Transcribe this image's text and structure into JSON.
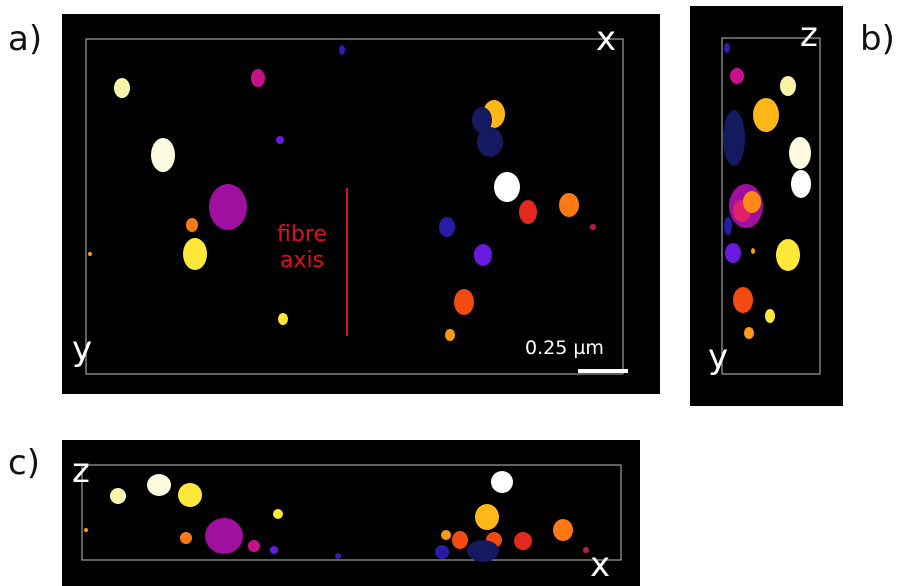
{
  "figure": {
    "panels": [
      {
        "id": "a",
        "letter": "a)",
        "axis_top_right": "x",
        "axis_bottom_left": "y"
      },
      {
        "id": "b",
        "letter": "b)",
        "axis_top_right": "z",
        "axis_bottom_left": "y"
      },
      {
        "id": "c",
        "letter": "c)",
        "axis_top_left": "z",
        "axis_bottom_right": "x"
      }
    ],
    "fibre_axis_label_line1": "fibre",
    "fibre_axis_label_line2": "axis",
    "scale_bar_label": "0.25 µm",
    "colors": {
      "background": "#000000",
      "frame": "#bfbfbf",
      "fibre_axis": "#e0101a",
      "particles": [
        "#fffbe0",
        "#f9f3a8",
        "#ffe83a",
        "#ffb818",
        "#ff7a14",
        "#f24a10",
        "#e02a20",
        "#c018b0",
        "#a010a0",
        "#6a1ae0",
        "#2a1aa8",
        "#141a60"
      ]
    }
  }
}
